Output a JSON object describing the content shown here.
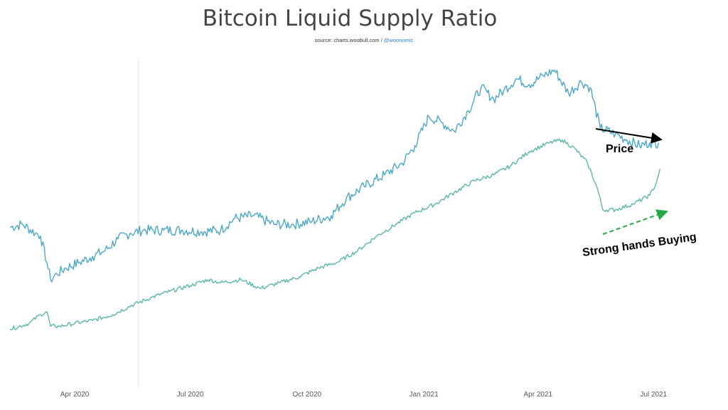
{
  "chart_data": {
    "type": "line",
    "title": "Bitcoin Liquid Supply Ratio",
    "source_prefix": "source: charts.woobull.com / ",
    "source_handle": "@woonomic",
    "x_ticks": [
      "Apr 2020",
      "Jul 2020",
      "Oct 2020",
      "Jan 2021",
      "Apr 2021",
      "Jul 2021"
    ],
    "x_range": [
      "2020-02-10",
      "2021-07-07"
    ],
    "y_axis": "not labeled",
    "series": [
      {
        "name": "Price",
        "color": "#4aa8c8",
        "points": [
          [
            "2020-02-10",
            52
          ],
          [
            "2020-02-20",
            53
          ],
          [
            "2020-03-01",
            50
          ],
          [
            "2020-03-05",
            49
          ],
          [
            "2020-03-10",
            40
          ],
          [
            "2020-03-13",
            34
          ],
          [
            "2020-03-18",
            36
          ],
          [
            "2020-03-25",
            38
          ],
          [
            "2020-04-05",
            40
          ],
          [
            "2020-04-15",
            42
          ],
          [
            "2020-04-25",
            44
          ],
          [
            "2020-05-05",
            48
          ],
          [
            "2020-05-15",
            50
          ],
          [
            "2020-05-25",
            51
          ],
          [
            "2020-06-10",
            51
          ],
          [
            "2020-06-25",
            51
          ],
          [
            "2020-07-10",
            50.5
          ],
          [
            "2020-07-25",
            51
          ],
          [
            "2020-08-05",
            55
          ],
          [
            "2020-08-20",
            56
          ],
          [
            "2020-09-05",
            53
          ],
          [
            "2020-09-20",
            53
          ],
          [
            "2020-10-05",
            54
          ],
          [
            "2020-10-20",
            56
          ],
          [
            "2020-11-01",
            62
          ],
          [
            "2020-11-15",
            66
          ],
          [
            "2020-12-01",
            70
          ],
          [
            "2020-12-15",
            74
          ],
          [
            "2020-12-25",
            80
          ],
          [
            "2021-01-05",
            90
          ],
          [
            "2021-01-15",
            88
          ],
          [
            "2021-01-25",
            85
          ],
          [
            "2021-02-05",
            92
          ],
          [
            "2021-02-15",
            100
          ],
          [
            "2021-02-25",
            96
          ],
          [
            "2021-03-05",
            99
          ],
          [
            "2021-03-15",
            103
          ],
          [
            "2021-03-25",
            101
          ],
          [
            "2021-04-05",
            104
          ],
          [
            "2021-04-14",
            106
          ],
          [
            "2021-04-25",
            98
          ],
          [
            "2021-05-05",
            102
          ],
          [
            "2021-05-12",
            100
          ],
          [
            "2021-05-20",
            86
          ],
          [
            "2021-06-01",
            84
          ],
          [
            "2021-06-10",
            82
          ],
          [
            "2021-06-20",
            80
          ],
          [
            "2021-06-28",
            81
          ],
          [
            "2021-07-05",
            81
          ]
        ]
      },
      {
        "name": "Liquid Supply Ratio",
        "color": "#5ab8a8",
        "points": [
          [
            "2020-02-10",
            17
          ],
          [
            "2020-02-25",
            19
          ],
          [
            "2020-03-05",
            22
          ],
          [
            "2020-03-10",
            23
          ],
          [
            "2020-03-13",
            18
          ],
          [
            "2020-03-20",
            18
          ],
          [
            "2020-04-01",
            19
          ],
          [
            "2020-04-15",
            20
          ],
          [
            "2020-05-01",
            22
          ],
          [
            "2020-05-15",
            25
          ],
          [
            "2020-06-01",
            28
          ],
          [
            "2020-06-15",
            30
          ],
          [
            "2020-07-01",
            32
          ],
          [
            "2020-07-15",
            34
          ],
          [
            "2020-07-25",
            33
          ],
          [
            "2020-08-10",
            34
          ],
          [
            "2020-08-25",
            31
          ],
          [
            "2020-09-10",
            33
          ],
          [
            "2020-09-25",
            35
          ],
          [
            "2020-10-10",
            38
          ],
          [
            "2020-10-25",
            40
          ],
          [
            "2020-11-10",
            44
          ],
          [
            "2020-11-25",
            49
          ],
          [
            "2020-12-10",
            53
          ],
          [
            "2020-12-25",
            57
          ],
          [
            "2021-01-10",
            60
          ],
          [
            "2021-01-25",
            64
          ],
          [
            "2021-02-10",
            68
          ],
          [
            "2021-02-25",
            70
          ],
          [
            "2021-03-10",
            73
          ],
          [
            "2021-03-25",
            78
          ],
          [
            "2021-04-10",
            81
          ],
          [
            "2021-04-20",
            82
          ],
          [
            "2021-04-30",
            79
          ],
          [
            "2021-05-10",
            74
          ],
          [
            "2021-05-18",
            65
          ],
          [
            "2021-05-22",
            58
          ],
          [
            "2021-06-01",
            58
          ],
          [
            "2021-06-15",
            60
          ],
          [
            "2021-06-28",
            63
          ],
          [
            "2021-07-03",
            67
          ],
          [
            "2021-07-06",
            72
          ]
        ]
      }
    ],
    "annotations": [
      {
        "text": "Price",
        "arrow": "solid black, trending down"
      },
      {
        "text": "Strong hands Buying",
        "arrow": "dashed green, trending up"
      }
    ]
  },
  "colors": {
    "price_line": "#4aa8c8",
    "ratio_line": "#5ab8a8",
    "price_arrow": "#000000",
    "buying_arrow": "#22aa44",
    "crosshair": "#e0e0e0"
  }
}
